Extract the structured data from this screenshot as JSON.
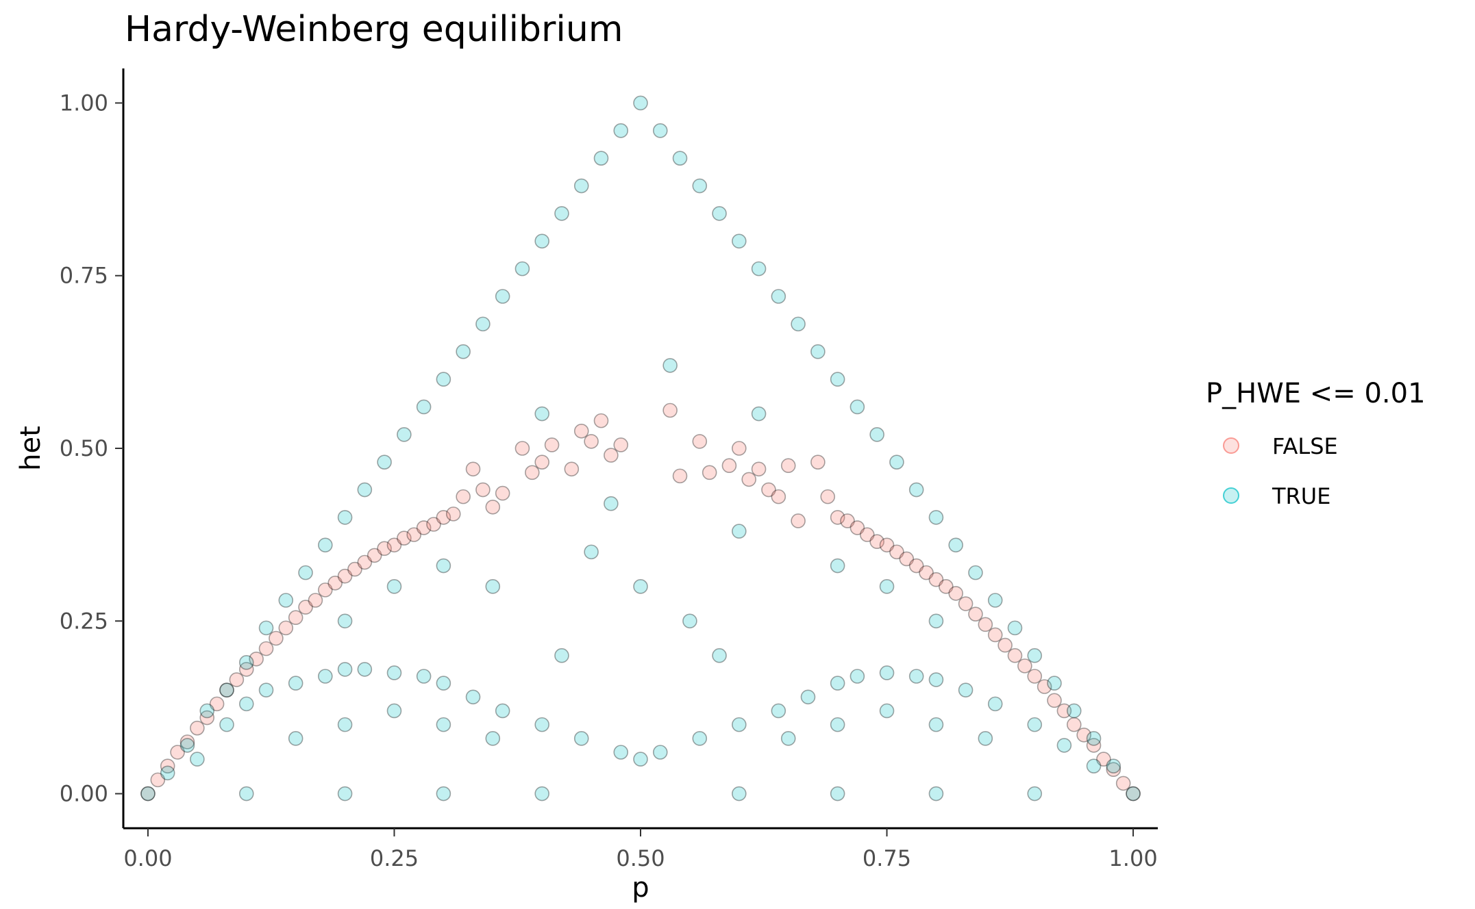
{
  "chart_data": {
    "type": "scatter",
    "title": "Hardy-Weinberg equilibrium",
    "xlabel": "p",
    "ylabel": "het",
    "xlim": [
      -0.025,
      1.025
    ],
    "ylim": [
      -0.05,
      1.05
    ],
    "x_ticks": [
      0,
      0.25,
      0.5,
      0.75,
      1
    ],
    "x_tick_labels": [
      "0.00",
      "0.25",
      "0.50",
      "0.75",
      "1.00"
    ],
    "y_ticks": [
      0,
      0.25,
      0.5,
      0.75,
      1
    ],
    "y_tick_labels": [
      "0.00",
      "0.25",
      "0.50",
      "0.75",
      "1.00"
    ],
    "grid": false,
    "legend": {
      "title": "P_HWE <= 0.01",
      "placement": "right",
      "entries": [
        "FALSE",
        "TRUE"
      ]
    },
    "series": [
      {
        "name": "FALSE",
        "color": "#F8766D",
        "points": [
          [
            0.0,
            0.0
          ],
          [
            0.01,
            0.02
          ],
          [
            0.02,
            0.04
          ],
          [
            0.03,
            0.06
          ],
          [
            0.04,
            0.075
          ],
          [
            0.05,
            0.095
          ],
          [
            0.06,
            0.11
          ],
          [
            0.07,
            0.13
          ],
          [
            0.08,
            0.15
          ],
          [
            0.09,
            0.165
          ],
          [
            0.1,
            0.18
          ],
          [
            0.11,
            0.195
          ],
          [
            0.12,
            0.21
          ],
          [
            0.13,
            0.225
          ],
          [
            0.14,
            0.24
          ],
          [
            0.15,
            0.255
          ],
          [
            0.16,
            0.27
          ],
          [
            0.17,
            0.28
          ],
          [
            0.18,
            0.295
          ],
          [
            0.19,
            0.305
          ],
          [
            0.2,
            0.315
          ],
          [
            0.21,
            0.325
          ],
          [
            0.22,
            0.335
          ],
          [
            0.23,
            0.345
          ],
          [
            0.24,
            0.355
          ],
          [
            0.25,
            0.36
          ],
          [
            0.26,
            0.37
          ],
          [
            0.27,
            0.375
          ],
          [
            0.28,
            0.385
          ],
          [
            0.29,
            0.39
          ],
          [
            0.3,
            0.4
          ],
          [
            0.31,
            0.405
          ],
          [
            0.32,
            0.43
          ],
          [
            0.33,
            0.47
          ],
          [
            0.34,
            0.44
          ],
          [
            0.35,
            0.415
          ],
          [
            0.36,
            0.435
          ],
          [
            0.38,
            0.5
          ],
          [
            0.39,
            0.465
          ],
          [
            0.4,
            0.48
          ],
          [
            0.41,
            0.505
          ],
          [
            0.43,
            0.47
          ],
          [
            0.44,
            0.525
          ],
          [
            0.45,
            0.51
          ],
          [
            0.46,
            0.54
          ],
          [
            0.47,
            0.49
          ],
          [
            0.48,
            0.505
          ],
          [
            0.53,
            0.555
          ],
          [
            0.54,
            0.46
          ],
          [
            0.56,
            0.51
          ],
          [
            0.57,
            0.465
          ],
          [
            0.59,
            0.475
          ],
          [
            0.6,
            0.5
          ],
          [
            0.61,
            0.455
          ],
          [
            0.62,
            0.47
          ],
          [
            0.63,
            0.44
          ],
          [
            0.64,
            0.43
          ],
          [
            0.65,
            0.475
          ],
          [
            0.66,
            0.395
          ],
          [
            0.68,
            0.48
          ],
          [
            0.69,
            0.43
          ],
          [
            0.7,
            0.4
          ],
          [
            0.71,
            0.395
          ],
          [
            0.72,
            0.385
          ],
          [
            0.73,
            0.375
          ],
          [
            0.74,
            0.365
          ],
          [
            0.75,
            0.36
          ],
          [
            0.76,
            0.35
          ],
          [
            0.77,
            0.34
          ],
          [
            0.78,
            0.33
          ],
          [
            0.79,
            0.32
          ],
          [
            0.8,
            0.31
          ],
          [
            0.81,
            0.3
          ],
          [
            0.82,
            0.29
          ],
          [
            0.83,
            0.275
          ],
          [
            0.84,
            0.26
          ],
          [
            0.85,
            0.245
          ],
          [
            0.86,
            0.23
          ],
          [
            0.87,
            0.215
          ],
          [
            0.88,
            0.2
          ],
          [
            0.89,
            0.185
          ],
          [
            0.9,
            0.17
          ],
          [
            0.91,
            0.155
          ],
          [
            0.92,
            0.135
          ],
          [
            0.93,
            0.12
          ],
          [
            0.94,
            0.1
          ],
          [
            0.95,
            0.085
          ],
          [
            0.96,
            0.07
          ],
          [
            0.97,
            0.05
          ],
          [
            0.98,
            0.035
          ],
          [
            0.99,
            0.015
          ],
          [
            1.0,
            0.0
          ]
        ]
      },
      {
        "name": "TRUE",
        "color": "#00BFC4",
        "points": [
          [
            0.0,
            0.0
          ],
          [
            0.02,
            0.03
          ],
          [
            0.04,
            0.07
          ],
          [
            0.06,
            0.12
          ],
          [
            0.08,
            0.15
          ],
          [
            0.1,
            0.19
          ],
          [
            0.12,
            0.24
          ],
          [
            0.14,
            0.28
          ],
          [
            0.16,
            0.32
          ],
          [
            0.18,
            0.36
          ],
          [
            0.2,
            0.4
          ],
          [
            0.22,
            0.44
          ],
          [
            0.24,
            0.48
          ],
          [
            0.26,
            0.52
          ],
          [
            0.28,
            0.56
          ],
          [
            0.3,
            0.6
          ],
          [
            0.32,
            0.64
          ],
          [
            0.34,
            0.68
          ],
          [
            0.36,
            0.72
          ],
          [
            0.38,
            0.76
          ],
          [
            0.4,
            0.8
          ],
          [
            0.42,
            0.84
          ],
          [
            0.44,
            0.88
          ],
          [
            0.46,
            0.92
          ],
          [
            0.48,
            0.96
          ],
          [
            0.5,
            1.0
          ],
          [
            0.52,
            0.96
          ],
          [
            0.54,
            0.92
          ],
          [
            0.56,
            0.88
          ],
          [
            0.58,
            0.84
          ],
          [
            0.6,
            0.8
          ],
          [
            0.62,
            0.76
          ],
          [
            0.64,
            0.72
          ],
          [
            0.66,
            0.68
          ],
          [
            0.68,
            0.64
          ],
          [
            0.7,
            0.6
          ],
          [
            0.72,
            0.56
          ],
          [
            0.74,
            0.52
          ],
          [
            0.76,
            0.48
          ],
          [
            0.78,
            0.44
          ],
          [
            0.8,
            0.4
          ],
          [
            0.82,
            0.36
          ],
          [
            0.84,
            0.32
          ],
          [
            0.86,
            0.28
          ],
          [
            0.88,
            0.24
          ],
          [
            0.9,
            0.2
          ],
          [
            0.92,
            0.16
          ],
          [
            0.94,
            0.12
          ],
          [
            0.96,
            0.08
          ],
          [
            0.98,
            0.04
          ],
          [
            1.0,
            0.0
          ],
          [
            0.05,
            0.05
          ],
          [
            0.08,
            0.1
          ],
          [
            0.1,
            0.13
          ],
          [
            0.12,
            0.15
          ],
          [
            0.15,
            0.16
          ],
          [
            0.18,
            0.17
          ],
          [
            0.2,
            0.18
          ],
          [
            0.22,
            0.18
          ],
          [
            0.25,
            0.175
          ],
          [
            0.28,
            0.17
          ],
          [
            0.3,
            0.16
          ],
          [
            0.33,
            0.14
          ],
          [
            0.36,
            0.12
          ],
          [
            0.4,
            0.1
          ],
          [
            0.44,
            0.08
          ],
          [
            0.48,
            0.06
          ],
          [
            0.5,
            0.05
          ],
          [
            0.52,
            0.06
          ],
          [
            0.56,
            0.08
          ],
          [
            0.6,
            0.1
          ],
          [
            0.64,
            0.12
          ],
          [
            0.67,
            0.14
          ],
          [
            0.7,
            0.16
          ],
          [
            0.72,
            0.17
          ],
          [
            0.75,
            0.175
          ],
          [
            0.78,
            0.17
          ],
          [
            0.8,
            0.165
          ],
          [
            0.83,
            0.15
          ],
          [
            0.86,
            0.13
          ],
          [
            0.9,
            0.1
          ],
          [
            0.93,
            0.07
          ],
          [
            0.96,
            0.04
          ],
          [
            0.1,
            0.0
          ],
          [
            0.2,
            0.0
          ],
          [
            0.3,
            0.0
          ],
          [
            0.4,
            0.0
          ],
          [
            0.6,
            0.0
          ],
          [
            0.7,
            0.0
          ],
          [
            0.8,
            0.0
          ],
          [
            0.9,
            0.0
          ],
          [
            0.15,
            0.08
          ],
          [
            0.2,
            0.1
          ],
          [
            0.25,
            0.12
          ],
          [
            0.3,
            0.1
          ],
          [
            0.35,
            0.08
          ],
          [
            0.65,
            0.08
          ],
          [
            0.7,
            0.1
          ],
          [
            0.75,
            0.12
          ],
          [
            0.8,
            0.1
          ],
          [
            0.85,
            0.08
          ],
          [
            0.2,
            0.25
          ],
          [
            0.25,
            0.3
          ],
          [
            0.3,
            0.33
          ],
          [
            0.35,
            0.3
          ],
          [
            0.7,
            0.33
          ],
          [
            0.75,
            0.3
          ],
          [
            0.8,
            0.25
          ],
          [
            0.45,
            0.35
          ],
          [
            0.5,
            0.3
          ],
          [
            0.55,
            0.25
          ],
          [
            0.58,
            0.2
          ],
          [
            0.42,
            0.2
          ],
          [
            0.6,
            0.38
          ],
          [
            0.62,
            0.55
          ],
          [
            0.4,
            0.55
          ],
          [
            0.47,
            0.42
          ],
          [
            0.53,
            0.62
          ]
        ]
      }
    ]
  }
}
